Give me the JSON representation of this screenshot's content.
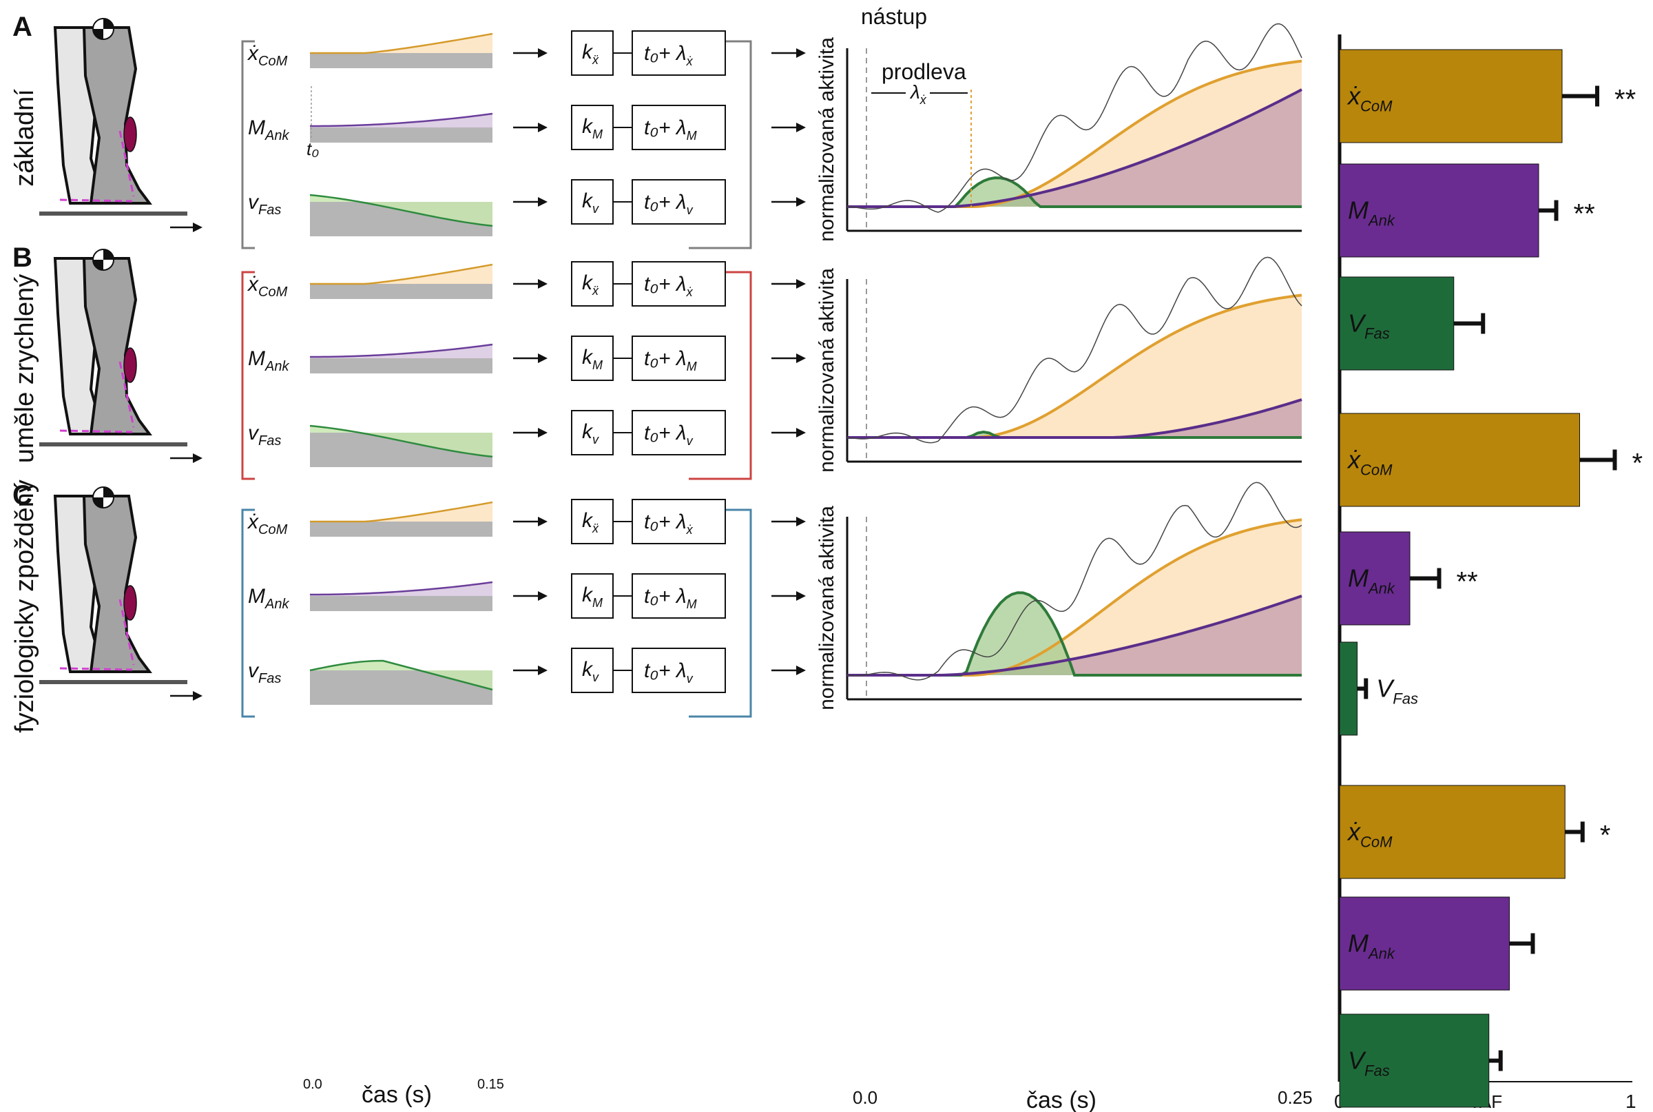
{
  "panels": [
    {
      "letter": "A",
      "condition": "základní",
      "color": "#808080"
    },
    {
      "letter": "B",
      "condition": "uměle zrychlený",
      "color": "#cc4444"
    },
    {
      "letter": "C",
      "condition": "fyziologicky zpožděný",
      "color": "#4a86a8"
    }
  ],
  "signals": {
    "com": {
      "main": "ẋ",
      "sub": "CoM",
      "color": "#d49a2a",
      "fill": "#fde3bf"
    },
    "ank": {
      "main": "M",
      "sub": "Ank",
      "color": "#6a3d9a",
      "fill": "#d8c8e0"
    },
    "fas": {
      "main": "v",
      "sub": "Fas",
      "color": "#2e8b3e",
      "fill": "#c8e6b0"
    }
  },
  "gains": {
    "com": {
      "k": "k",
      "ksub": "ẍ",
      "delay": "t₀+ λ",
      "dsub": "ẋ"
    },
    "ank": {
      "k": "k",
      "ksub": "M",
      "delay": "t₀+ λ",
      "dsub": "M"
    },
    "fas": {
      "k": "k",
      "ksub": "v",
      "delay": "t₀+ λ",
      "dsub": "v"
    }
  },
  "annot": {
    "t0": "t₀",
    "onset": "nástup",
    "delay": "prodleva",
    "lambda": "λ",
    "lambda_sub": "ẋ",
    "ylabel": "normalizovaná aktivita"
  },
  "axes": {
    "kin_xlabel": "čas (s)",
    "kin_ticks": [
      "0.0",
      "0.15"
    ],
    "emg_xlabel": "čas (s)",
    "emg_ticks": [
      "0.0",
      "0.25"
    ],
    "vaf_xlabel": "VAF",
    "vaf_ticks": [
      "0",
      "1"
    ]
  },
  "chart_data": {
    "type": "bar",
    "title": "",
    "xlabel": "VAF",
    "xlim": [
      0,
      1
    ],
    "groups": [
      {
        "panel": "A",
        "bars": [
          {
            "label": "ẋ CoM",
            "value": 0.76,
            "error": 0.12,
            "sig": "**",
            "color": "#b8860b"
          },
          {
            "label": "M Ank",
            "value": 0.68,
            "error": 0.06,
            "sig": "**",
            "color": "#6a2c91"
          },
          {
            "label": "V Fas",
            "value": 0.39,
            "error": 0.1,
            "sig": "",
            "color": "#1e6b3a"
          }
        ]
      },
      {
        "panel": "B",
        "bars": [
          {
            "label": "ẋ CoM",
            "value": 0.82,
            "error": 0.12,
            "sig": "*",
            "color": "#b8860b"
          },
          {
            "label": "M Ank",
            "value": 0.24,
            "error": 0.1,
            "sig": "**",
            "color": "#6a2c91"
          },
          {
            "label": "V Fas",
            "value": 0.06,
            "error": 0.03,
            "sig": "",
            "color": "#1e6b3a"
          }
        ]
      },
      {
        "panel": "C",
        "bars": [
          {
            "label": "ẋ CoM",
            "value": 0.77,
            "error": 0.06,
            "sig": "*",
            "color": "#b8860b"
          },
          {
            "label": "M Ank",
            "value": 0.58,
            "error": 0.08,
            "sig": "",
            "color": "#6a2c91"
          },
          {
            "label": "V Fas",
            "value": 0.51,
            "error": 0.04,
            "sig": "",
            "color": "#1e6b3a"
          }
        ]
      }
    ]
  }
}
